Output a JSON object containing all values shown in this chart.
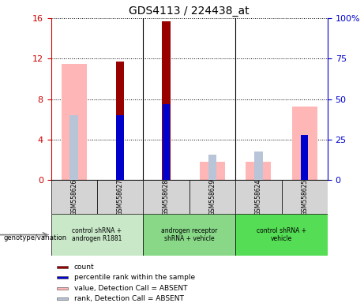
{
  "title": "GDS4113 / 224438_at",
  "samples": [
    "GSM558626",
    "GSM558627",
    "GSM558628",
    "GSM558629",
    "GSM558624",
    "GSM558625"
  ],
  "count_values": [
    0,
    11.7,
    15.7,
    0,
    0,
    0
  ],
  "percentile_values": [
    0,
    40,
    47,
    0,
    0,
    28
  ],
  "value_absent": [
    11.5,
    0,
    0,
    1.8,
    1.8,
    7.3
  ],
  "rank_absent": [
    40,
    0,
    0,
    16,
    18,
    0
  ],
  "ylim_left": [
    0,
    16
  ],
  "ylim_right": [
    0,
    100
  ],
  "yticks_left": [
    0,
    4,
    8,
    12,
    16
  ],
  "yticks_right": [
    0,
    25,
    50,
    75,
    100
  ],
  "ytick_labels_right": [
    "0",
    "25",
    "50",
    "75",
    "100%"
  ],
  "color_count": "#990000",
  "color_percentile": "#0000cc",
  "color_value_absent": "#ffb6b6",
  "color_rank_absent": "#b8c4d8",
  "group_info": [
    {
      "label": "control shRNA +\nandrogen R1881",
      "start": 0,
      "end": 2,
      "color": "#c8e8c8"
    },
    {
      "label": "androgen receptor\nshRNA + vehicle",
      "start": 2,
      "end": 4,
      "color": "#88d888"
    },
    {
      "label": "control shRNA +\nvehicle",
      "start": 4,
      "end": 6,
      "color": "#55dd55"
    }
  ],
  "legend_items": [
    {
      "color": "#990000",
      "label": "count"
    },
    {
      "color": "#0000cc",
      "label": "percentile rank within the sample"
    },
    {
      "color": "#ffb6b6",
      "label": "value, Detection Call = ABSENT"
    },
    {
      "color": "#b8c4d8",
      "label": "rank, Detection Call = ABSENT"
    }
  ]
}
